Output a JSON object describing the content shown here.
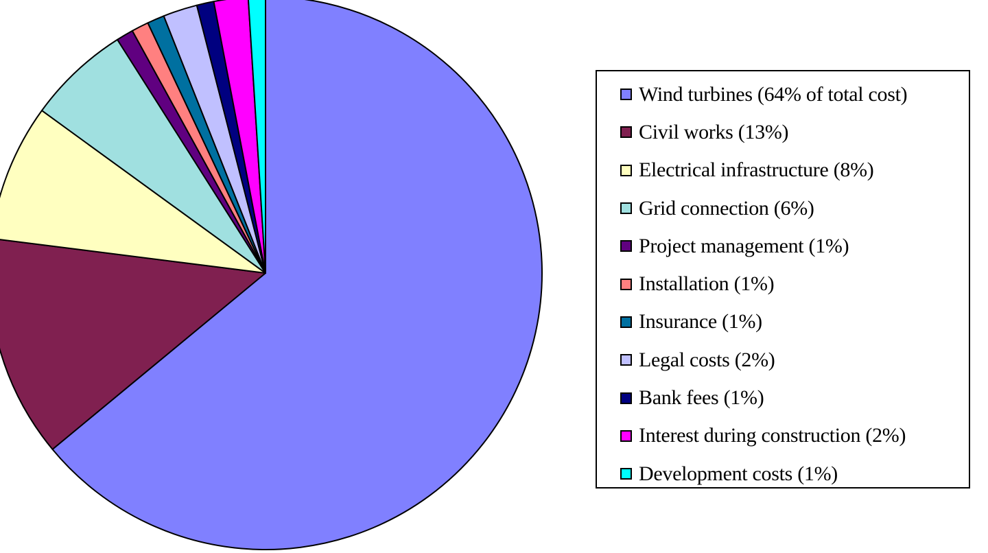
{
  "chart_data": {
    "type": "pie",
    "title": "",
    "legend_position": "right",
    "start_angle": "top",
    "direction": "clockwise",
    "slices": [
      {
        "label": "Wind turbines (64% of total cost)",
        "value": 64,
        "color": "#8080ff"
      },
      {
        "label": "Civil works (13%)",
        "value": 13,
        "color": "#802050"
      },
      {
        "label": "Electrical infrastructure (8%)",
        "value": 8,
        "color": "#ffffc0"
      },
      {
        "label": "Grid connection (6%)",
        "value": 6,
        "color": "#a0e0e0"
      },
      {
        "label": "Project management (1%)",
        "value": 1,
        "color": "#600080"
      },
      {
        "label": "Installation (1%)",
        "value": 1,
        "color": "#ff8080"
      },
      {
        "label": "Insurance (1%)",
        "value": 1,
        "color": "#0070a0"
      },
      {
        "label": "Legal costs (2%)",
        "value": 2,
        "color": "#c0c0ff"
      },
      {
        "label": "Bank fees (1%)",
        "value": 1,
        "color": "#000080"
      },
      {
        "label": "Interest during construction  (2%)",
        "value": 2,
        "color": "#ff00ff"
      },
      {
        "label": "Development costs (1%)",
        "value": 1,
        "color": "#00ffff"
      }
    ]
  }
}
